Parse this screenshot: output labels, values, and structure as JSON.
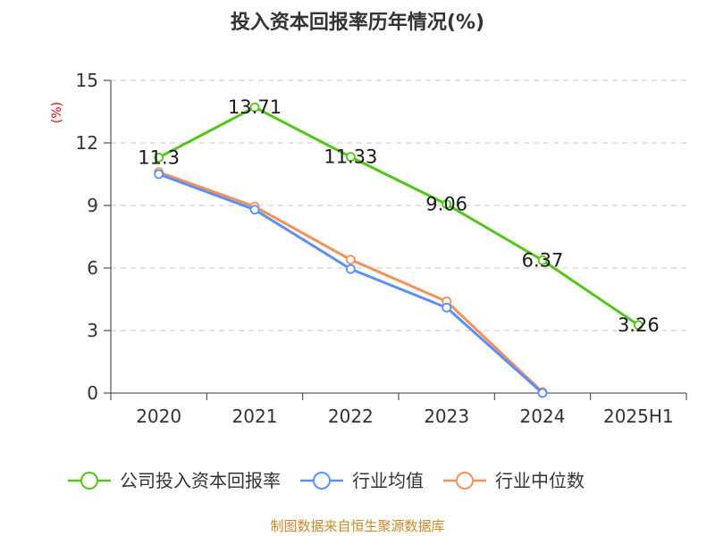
{
  "chart_data": {
    "type": "line",
    "title": "投入资本回报率历年情况(%)",
    "ylabel": "(%)",
    "categories": [
      "2020",
      "2021",
      "2022",
      "2023",
      "2024",
      "2025H1"
    ],
    "ylim": [
      0,
      15
    ],
    "yticks": [
      0,
      3,
      6,
      9,
      12,
      15
    ],
    "grid": true,
    "legend_position": "bottom",
    "series": [
      {
        "name": "公司投入资本回报率",
        "color": "#52c41a",
        "values": [
          11.3,
          13.71,
          11.33,
          9.06,
          6.37,
          3.26
        ],
        "labels": [
          "11.3",
          "13.71",
          "11.33",
          "9.06",
          "6.37",
          "3.26"
        ]
      },
      {
        "name": "行业均值",
        "color": "#5b8ff9",
        "values": [
          10.5,
          8.8,
          5.95,
          4.1,
          0.0,
          null
        ]
      },
      {
        "name": "行业中位数",
        "color": "#f4905a",
        "values": [
          10.6,
          8.95,
          6.4,
          4.4,
          0.05,
          null
        ]
      }
    ],
    "source": "制图数据来自恒生聚源数据库"
  }
}
